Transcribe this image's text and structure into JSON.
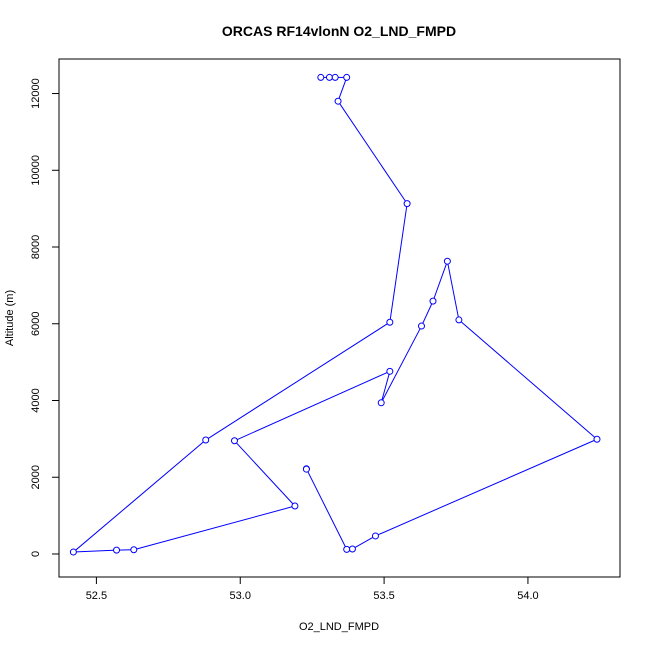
{
  "chart_data": {
    "type": "line",
    "title": "ORCAS RF14vlonN O2_LND_FMPD",
    "xlabel": "O2_LND_FMPD",
    "ylabel": "Altitude (m)",
    "xlim": [
      52.37,
      54.32
    ],
    "ylim": [
      -600,
      12900
    ],
    "xticks": [
      52.5,
      53.0,
      53.5,
      54.0
    ],
    "xtick_labels": [
      "52.5",
      "53.0",
      "53.5",
      "54.0"
    ],
    "yticks": [
      0,
      2000,
      4000,
      6000,
      8000,
      10000,
      12000
    ],
    "ytick_labels": [
      "0",
      "2000",
      "4000",
      "6000",
      "8000",
      "10000",
      "12000"
    ],
    "series": [
      {
        "color": "#0000ff",
        "marker": "open-circle",
        "x": [
          53.28,
          53.31,
          53.33,
          53.37,
          53.34,
          53.58,
          53.52,
          52.88,
          52.42,
          52.57,
          52.63,
          53.19,
          52.98,
          53.52,
          53.49,
          53.63,
          53.67,
          53.72,
          53.76,
          54.24,
          53.47,
          53.39,
          53.37,
          53.23,
          53.23
        ],
        "y": [
          12420,
          12420,
          12420,
          12420,
          11800,
          9130,
          6040,
          2970,
          50,
          100,
          110,
          1250,
          2950,
          4760,
          3940,
          5940,
          6590,
          7630,
          6100,
          2990,
          470,
          130,
          120,
          2220,
          2210
        ]
      }
    ],
    "grid": false,
    "legend": "none"
  }
}
